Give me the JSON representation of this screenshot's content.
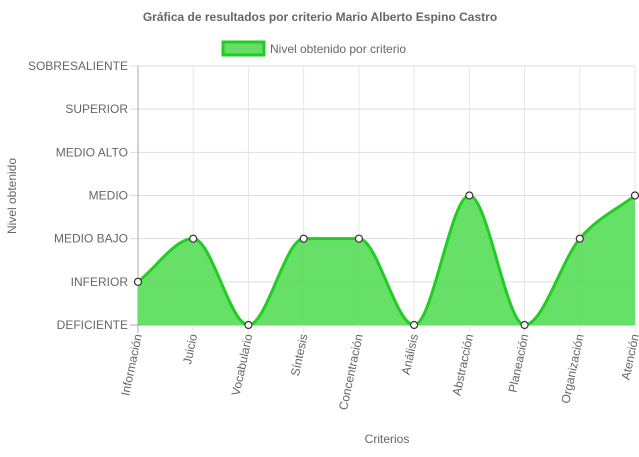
{
  "chart_data": {
    "type": "area",
    "title": "Gráfica de resultados por criterio Mario Alberto Espino Castro",
    "xlabel": "Criterios",
    "ylabel": "Nivel obtenido",
    "y_levels": [
      "DEFICIENTE",
      "INFERIOR",
      "MEDIO BAJO",
      "MEDIO",
      "MEDIO ALTO",
      "SUPERIOR",
      "SOBRESALIENTE"
    ],
    "ylim": [
      0,
      6
    ],
    "grid": true,
    "legend_position": "top",
    "categories": [
      "Información",
      "Juicio",
      "Vocabulario",
      "Síntesis",
      "Concentración",
      "Análisis",
      "Abstracción",
      "Planeación",
      "Organización",
      "Atención"
    ],
    "series": [
      {
        "name": "Nivel obtenido por criterio",
        "values": [
          1,
          2,
          0,
          2,
          2,
          0,
          3,
          0,
          2,
          3
        ],
        "line_color": "#22cc22",
        "fill_color": "#55dd55"
      }
    ]
  }
}
